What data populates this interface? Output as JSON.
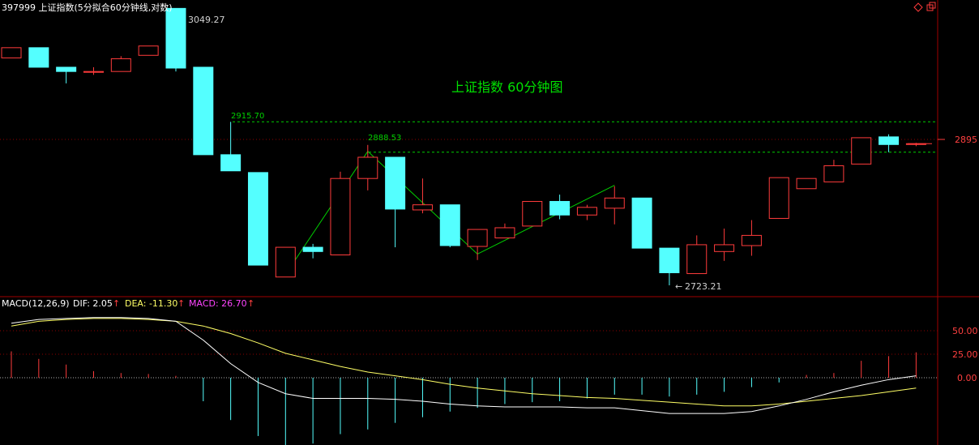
{
  "header": {
    "title": "397999 上证指数(5分拟合60分钟线,对数)",
    "chart_caption": "上证指数 60分钟图",
    "price_tag": "2895",
    "window_icons": [
      "diamond-icon",
      "restore-icon"
    ]
  },
  "colors": {
    "background": "#000000",
    "up": "#ff3b3b",
    "down": "#54ffff",
    "grid": "#8b0000",
    "axis_text": "#ff4040",
    "caption": "#00e000",
    "dif": "#ffffff",
    "dea": "#ffff66",
    "macd_label": "#ff44ff",
    "level": "#00d000"
  },
  "chart_data": [
    {
      "type": "candlestick",
      "title": "上证指数 60分钟图",
      "ylim": [
        2700,
        3060
      ],
      "y_tick_labels": [
        "2895"
      ],
      "candles": [
        {
          "open": 2991,
          "high": 3003,
          "low": 2991,
          "close": 3003
        },
        {
          "open": 3003,
          "high": 3003,
          "low": 2980,
          "close": 2980
        },
        {
          "open": 2980,
          "high": 2980,
          "low": 2961,
          "close": 2975
        },
        {
          "open": 2974,
          "high": 2980,
          "low": 2971,
          "close": 2975
        },
        {
          "open": 2975,
          "high": 2993,
          "low": 2975,
          "close": 2990
        },
        {
          "open": 2994,
          "high": 3005,
          "low": 2994,
          "close": 3005
        },
        {
          "open": 3049.27,
          "high": 3049.27,
          "low": 2975,
          "close": 2979
        },
        {
          "open": 2980,
          "high": 2980,
          "low": 2877,
          "close": 2877
        },
        {
          "open": 2877,
          "high": 2915.7,
          "low": 2858,
          "close": 2858
        },
        {
          "open": 2856,
          "high": 2856,
          "low": 2747,
          "close": 2747
        },
        {
          "open": 2733,
          "high": 2765,
          "low": 2733,
          "close": 2768
        },
        {
          "open": 2768,
          "high": 2772,
          "low": 2755,
          "close": 2763
        },
        {
          "open": 2759,
          "high": 2857,
          "low": 2759,
          "close": 2849
        },
        {
          "open": 2849,
          "high": 2888.53,
          "low": 2835,
          "close": 2874
        },
        {
          "open": 2874,
          "high": 2874,
          "low": 2768,
          "close": 2813
        },
        {
          "open": 2812,
          "high": 2849,
          "low": 2808,
          "close": 2818
        },
        {
          "open": 2818,
          "high": 2818,
          "low": 2768,
          "close": 2770
        },
        {
          "open": 2769,
          "high": 2789,
          "low": 2753,
          "close": 2789
        },
        {
          "open": 2779,
          "high": 2796,
          "low": 2779,
          "close": 2791
        },
        {
          "open": 2793,
          "high": 2822,
          "low": 2793,
          "close": 2822
        },
        {
          "open": 2822,
          "high": 2830,
          "low": 2801,
          "close": 2806
        },
        {
          "open": 2806,
          "high": 2818,
          "low": 2800,
          "close": 2815
        },
        {
          "open": 2814,
          "high": 2840,
          "low": 2795,
          "close": 2826
        },
        {
          "open": 2826,
          "high": 2826,
          "low": 2767,
          "close": 2767
        },
        {
          "open": 2767,
          "high": 2767,
          "low": 2723.21,
          "close": 2738
        },
        {
          "open": 2737,
          "high": 2782,
          "low": 2737,
          "close": 2771
        },
        {
          "open": 2763,
          "high": 2790,
          "low": 2752,
          "close": 2771
        },
        {
          "open": 2770,
          "high": 2800,
          "low": 2758,
          "close": 2782
        },
        {
          "open": 2802,
          "high": 2850,
          "low": 2802,
          "close": 2850
        },
        {
          "open": 2837,
          "high": 2849,
          "low": 2837,
          "close": 2849
        },
        {
          "open": 2845,
          "high": 2871,
          "low": 2845,
          "close": 2864
        },
        {
          "open": 2866,
          "high": 2897,
          "low": 2866,
          "close": 2897
        },
        {
          "open": 2898,
          "high": 2901,
          "low": 2880,
          "close": 2889
        },
        {
          "open": 2889,
          "high": 2891,
          "low": 2887,
          "close": 2890
        }
      ],
      "annotations": [
        {
          "text": "3049.27"
        },
        {
          "text": "2915.70"
        },
        {
          "text": "2888.53"
        },
        {
          "text": "2723.21"
        }
      ],
      "levels": [
        2915.7,
        2880
      ],
      "zigzag": [
        {
          "index": 10,
          "value": 2736
        },
        {
          "index": 13,
          "value": 2881
        },
        {
          "index": 17,
          "value": 2760
        },
        {
          "index": 22,
          "value": 2841
        }
      ]
    },
    {
      "type": "macd",
      "params_label": "MACD(12,26,9)",
      "dif_label": "DIF: 2.05",
      "dea_label": "DEA: -11.30",
      "macd_label": "MACD: 26.70",
      "arrow": "↑",
      "y_tick_labels": [
        "50.00",
        "25.00",
        "0.00"
      ],
      "ylim": [
        -80,
        80
      ],
      "dif": [
        58,
        62,
        63,
        64,
        64,
        63,
        60,
        40,
        15,
        -5,
        -17,
        -22,
        -22,
        -22,
        -23,
        -25,
        -28,
        -30,
        -31,
        -31,
        -31,
        -32,
        -32,
        -35,
        -38,
        -38,
        -38,
        -36,
        -30,
        -23,
        -15,
        -8,
        -2,
        2
      ],
      "dea": [
        55,
        60,
        62,
        63,
        63,
        62,
        60,
        55,
        47,
        37,
        26,
        19,
        12,
        6,
        2,
        -2,
        -7,
        -11,
        -14,
        -17,
        -19,
        -21,
        -22,
        -24,
        -26,
        -28,
        -30,
        -30,
        -28,
        -25,
        -22,
        -19,
        -15,
        -11
      ],
      "macd": [
        28,
        20,
        14,
        7,
        5,
        4,
        2,
        -25,
        -45,
        -62,
        -73,
        -70,
        -60,
        -55,
        -48,
        -42,
        -36,
        -32,
        -28,
        -26,
        -25,
        -22,
        -18,
        -18,
        -20,
        -18,
        -15,
        -10,
        -5,
        3,
        5,
        18,
        23,
        27
      ]
    }
  ]
}
